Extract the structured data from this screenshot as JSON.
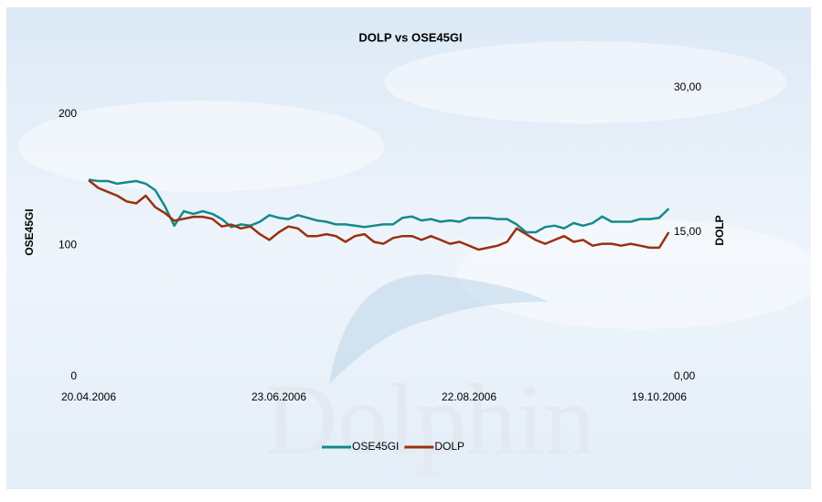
{
  "chart_data": {
    "type": "line",
    "title": "DOLP vs OSE45GI",
    "ylabel": "OSE45GI",
    "y2label": "DOLP",
    "watermark": "Dolphin",
    "categories": [
      "20.04.2006",
      null,
      null,
      null,
      null,
      null,
      null,
      null,
      null,
      null,
      null,
      null,
      null,
      null,
      null,
      null,
      null,
      null,
      null,
      null,
      "23.06.2006",
      null,
      null,
      null,
      null,
      null,
      null,
      null,
      null,
      null,
      null,
      null,
      null,
      null,
      null,
      null,
      null,
      null,
      null,
      null,
      "22.08.2006",
      null,
      null,
      null,
      null,
      null,
      null,
      null,
      null,
      null,
      null,
      null,
      null,
      null,
      null,
      null,
      null,
      null,
      null,
      null,
      "19.10.2006",
      null
    ],
    "series": [
      {
        "name": "OSE45GI",
        "color": "#128a8a",
        "values": [
          150,
          149,
          149,
          147,
          148,
          149,
          147,
          142,
          130,
          115,
          126,
          124,
          126,
          124,
          120,
          114,
          116,
          115,
          118,
          123,
          121,
          120,
          123,
          121,
          119,
          118,
          116,
          116,
          115,
          114,
          115,
          116,
          116,
          121,
          122,
          119,
          120,
          118,
          119,
          118,
          121,
          121,
          121,
          120,
          120,
          116,
          110,
          110,
          114,
          115,
          113,
          117,
          115,
          117,
          122,
          118,
          118,
          118,
          120,
          120,
          121,
          128
        ]
      },
      {
        "name": "DOLP",
        "color": "#9a3010",
        "axis": "y2",
        "values": [
          20.4,
          19.6,
          19.2,
          18.8,
          18.2,
          18.0,
          18.8,
          17.6,
          17.0,
          16.2,
          16.4,
          16.6,
          16.6,
          16.4,
          15.6,
          15.8,
          15.4,
          15.6,
          14.8,
          14.2,
          15.0,
          15.6,
          15.4,
          14.6,
          14.6,
          14.8,
          14.6,
          14.0,
          14.6,
          14.8,
          14.0,
          13.8,
          14.4,
          14.6,
          14.6,
          14.2,
          14.6,
          14.2,
          13.8,
          14.0,
          13.6,
          13.2,
          13.4,
          13.6,
          14.0,
          15.4,
          14.8,
          14.2,
          13.8,
          14.2,
          14.6,
          14.0,
          14.2,
          13.6,
          13.8,
          13.8,
          13.6,
          13.8,
          13.6,
          13.4,
          13.4,
          15.0
        ]
      }
    ],
    "ylim": [
      0,
      220
    ],
    "yticks": [
      0,
      100,
      200
    ],
    "y2lim": [
      0,
      30
    ],
    "y2ticks": [
      {
        "value": 0,
        "label": "0,00"
      },
      {
        "value": 15,
        "label": "15,00"
      },
      {
        "value": 30,
        "label": "30,00"
      }
    ],
    "legend": "bottom"
  }
}
